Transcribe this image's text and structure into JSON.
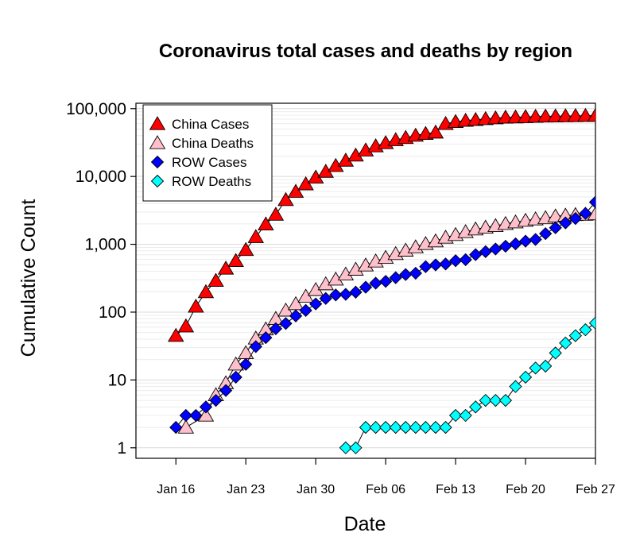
{
  "chart_data": {
    "type": "scatter",
    "title": "Coronavirus total cases and deaths by region",
    "xlabel": "Date",
    "ylabel": "Cumulative Count",
    "y_scale": "log",
    "ylim": [
      0.7,
      120000
    ],
    "xlim": [
      "2020-01-12",
      "2020-02-27"
    ],
    "grid": true,
    "legend_position": "top-left",
    "x_ticks": [
      {
        "date": "2020-01-16",
        "label": "Jan 16"
      },
      {
        "date": "2020-01-23",
        "label": "Jan 23"
      },
      {
        "date": "2020-01-30",
        "label": "Jan 30"
      },
      {
        "date": "2020-02-06",
        "label": "Feb 06"
      },
      {
        "date": "2020-02-13",
        "label": "Feb 13"
      },
      {
        "date": "2020-02-20",
        "label": "Feb 20"
      },
      {
        "date": "2020-02-27",
        "label": "Feb 27"
      }
    ],
    "y_ticks": [
      {
        "value": 1,
        "label": "1"
      },
      {
        "value": 10,
        "label": "10"
      },
      {
        "value": 100,
        "label": "100"
      },
      {
        "value": 1000,
        "label": "1,000"
      },
      {
        "value": 10000,
        "label": "10,000"
      },
      {
        "value": 100000,
        "label": "100,000"
      }
    ],
    "series": [
      {
        "name": "China Cases",
        "marker": "triangle",
        "color": "#ff0000",
        "x": [
          "2020-01-16",
          "2020-01-17",
          "2020-01-18",
          "2020-01-19",
          "2020-01-20",
          "2020-01-21",
          "2020-01-22",
          "2020-01-23",
          "2020-01-24",
          "2020-01-25",
          "2020-01-26",
          "2020-01-27",
          "2020-01-28",
          "2020-01-29",
          "2020-01-30",
          "2020-01-31",
          "2020-02-01",
          "2020-02-02",
          "2020-02-03",
          "2020-02-04",
          "2020-02-05",
          "2020-02-06",
          "2020-02-07",
          "2020-02-08",
          "2020-02-09",
          "2020-02-10",
          "2020-02-11",
          "2020-02-12",
          "2020-02-13",
          "2020-02-14",
          "2020-02-15",
          "2020-02-16",
          "2020-02-17",
          "2020-02-18",
          "2020-02-19",
          "2020-02-20",
          "2020-02-21",
          "2020-02-22",
          "2020-02-23",
          "2020-02-24",
          "2020-02-25",
          "2020-02-26",
          "2020-02-27"
        ],
        "y": [
          45,
          62,
          121,
          198,
          291,
          440,
          571,
          830,
          1287,
          1975,
          2744,
          4515,
          5974,
          7711,
          9692,
          11791,
          14380,
          17205,
          20438,
          24324,
          28018,
          31161,
          34546,
          37198,
          40171,
          42638,
          44653,
          59804,
          63851,
          66492,
          68500,
          70548,
          72436,
          74185,
          74576,
          75465,
          76288,
          76936,
          77150,
          77658,
          78064,
          78497,
          78824
        ]
      },
      {
        "name": "China Deaths",
        "marker": "triangle",
        "color": "#ffc0cb",
        "x": [
          "2020-01-17",
          "2020-01-19",
          "2020-01-20",
          "2020-01-21",
          "2020-01-22",
          "2020-01-23",
          "2020-01-24",
          "2020-01-25",
          "2020-01-26",
          "2020-01-27",
          "2020-01-28",
          "2020-01-29",
          "2020-01-30",
          "2020-01-31",
          "2020-02-01",
          "2020-02-02",
          "2020-02-03",
          "2020-02-04",
          "2020-02-05",
          "2020-02-06",
          "2020-02-07",
          "2020-02-08",
          "2020-02-09",
          "2020-02-10",
          "2020-02-11",
          "2020-02-12",
          "2020-02-13",
          "2020-02-14",
          "2020-02-15",
          "2020-02-16",
          "2020-02-17",
          "2020-02-18",
          "2020-02-19",
          "2020-02-20",
          "2020-02-21",
          "2020-02-22",
          "2020-02-23",
          "2020-02-24",
          "2020-02-25",
          "2020-02-26",
          "2020-02-27"
        ],
        "y": [
          2,
          3,
          6,
          9,
          17,
          25,
          41,
          56,
          80,
          106,
          132,
          170,
          213,
          259,
          304,
          361,
          425,
          490,
          562,
          636,
          723,
          812,
          908,
          1016,
          1113,
          1259,
          1380,
          1523,
          1665,
          1770,
          1868,
          2004,
          2118,
          2236,
          2345,
          2442,
          2592,
          2663,
          2715,
          2744,
          2788
        ]
      },
      {
        "name": "ROW Cases",
        "marker": "diamond",
        "color": "#0000ff",
        "x": [
          "2020-01-16",
          "2020-01-17",
          "2020-01-18",
          "2020-01-19",
          "2020-01-20",
          "2020-01-21",
          "2020-01-22",
          "2020-01-23",
          "2020-01-24",
          "2020-01-25",
          "2020-01-26",
          "2020-01-27",
          "2020-01-28",
          "2020-01-29",
          "2020-01-30",
          "2020-01-31",
          "2020-02-01",
          "2020-02-02",
          "2020-02-03",
          "2020-02-04",
          "2020-02-05",
          "2020-02-06",
          "2020-02-07",
          "2020-02-08",
          "2020-02-09",
          "2020-02-10",
          "2020-02-11",
          "2020-02-12",
          "2020-02-13",
          "2020-02-14",
          "2020-02-15",
          "2020-02-16",
          "2020-02-17",
          "2020-02-18",
          "2020-02-19",
          "2020-02-20",
          "2020-02-21",
          "2020-02-22",
          "2020-02-23",
          "2020-02-24",
          "2020-02-25",
          "2020-02-26",
          "2020-02-27"
        ],
        "y": [
          2,
          3,
          3,
          4,
          5,
          7,
          11,
          17,
          31,
          42,
          57,
          68,
          88,
          106,
          132,
          159,
          179,
          183,
          197,
          233,
          267,
          284,
          322,
          358,
          374,
          468,
          497,
          513,
          573,
          593,
          704,
          778,
          852,
          937,
          1016,
          1113,
          1178,
          1435,
          1753,
          2065,
          2398,
          2852,
          4187
        ]
      },
      {
        "name": "ROW Deaths",
        "marker": "diamond",
        "color": "#00ffff",
        "x": [
          "2020-02-02",
          "2020-02-03",
          "2020-02-04",
          "2020-02-05",
          "2020-02-06",
          "2020-02-07",
          "2020-02-08",
          "2020-02-09",
          "2020-02-10",
          "2020-02-11",
          "2020-02-12",
          "2020-02-13",
          "2020-02-14",
          "2020-02-15",
          "2020-02-16",
          "2020-02-17",
          "2020-02-18",
          "2020-02-19",
          "2020-02-20",
          "2020-02-21",
          "2020-02-22",
          "2020-02-23",
          "2020-02-24",
          "2020-02-25",
          "2020-02-26",
          "2020-02-27"
        ],
        "y": [
          1,
          1,
          2,
          2,
          2,
          2,
          2,
          2,
          2,
          2,
          2,
          3,
          3,
          4,
          5,
          5,
          5,
          8,
          11,
          15,
          16,
          25,
          35,
          45,
          55,
          69
        ]
      }
    ]
  }
}
